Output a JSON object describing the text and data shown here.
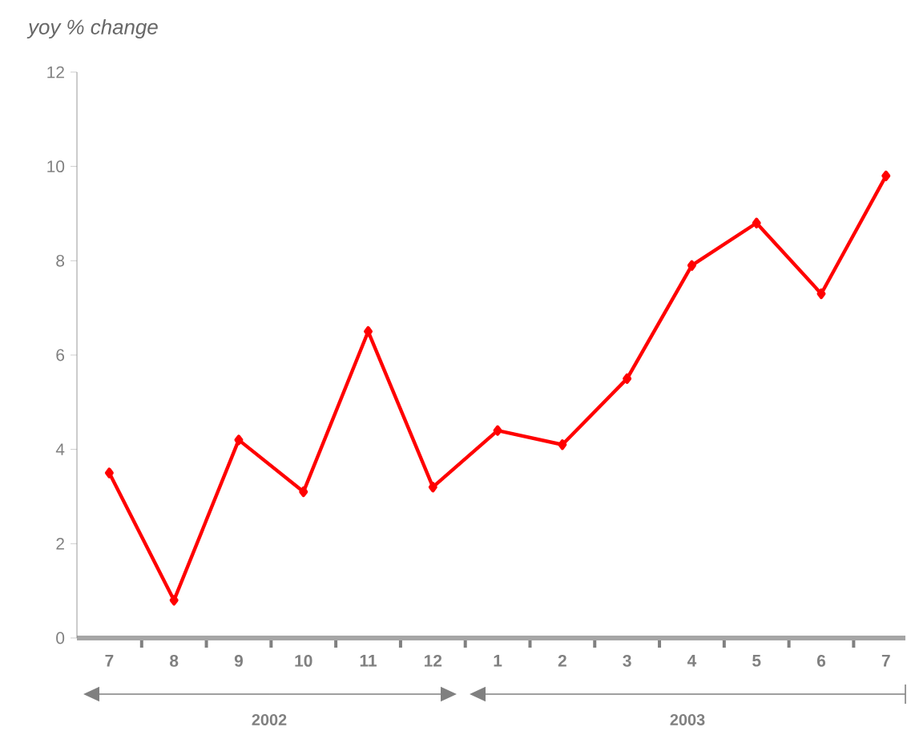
{
  "chart_data": {
    "type": "line",
    "ylabel": "yoy % change",
    "categories": [
      "7",
      "8",
      "9",
      "10",
      "11",
      "12",
      "1",
      "2",
      "3",
      "4",
      "5",
      "6",
      "7"
    ],
    "series": [
      {
        "color": "#ff0000",
        "values": [
          3.5,
          0.8,
          4.2,
          3.1,
          6.5,
          3.2,
          4.4,
          4.1,
          5.5,
          7.9,
          8.8,
          7.3,
          9.8
        ]
      }
    ],
    "ylim": [
      0,
      12
    ],
    "yticks": [
      0,
      2,
      4,
      6,
      8,
      10,
      12
    ],
    "grid": false,
    "marker": "diamond",
    "line_style": "solid",
    "annotations": [
      "2002",
      "2003"
    ]
  }
}
